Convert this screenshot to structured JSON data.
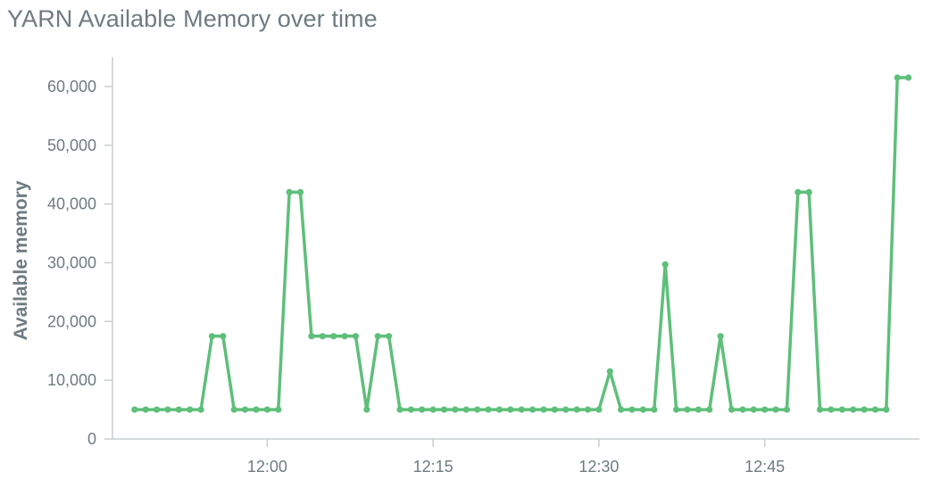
{
  "chart_data": {
    "type": "line",
    "title": "YARN Available Memory over time",
    "xlabel": "",
    "ylabel": "Available memory",
    "ylim": [
      0,
      65000
    ],
    "yticks": [
      0,
      10000,
      20000,
      30000,
      40000,
      50000,
      60000
    ],
    "ytick_labels": [
      "0",
      "10,000",
      "20,000",
      "30,000",
      "40,000",
      "50,000",
      "60,000"
    ],
    "xlim": [
      "11:46",
      "12:59"
    ],
    "xticks": [
      "12:00",
      "12:15",
      "12:30",
      "12:45"
    ],
    "grid": false,
    "legend": "none",
    "colors": {
      "line": "#5ebf7a",
      "text": "#6f7b80",
      "axis": "#c8cdd0"
    },
    "series": [
      {
        "x": [
          "11:48",
          "11:49",
          "11:50",
          "11:51",
          "11:52",
          "11:53",
          "11:54",
          "11:55",
          "11:56",
          "11:57",
          "11:58",
          "11:59",
          "12:00",
          "12:01",
          "12:02",
          "12:03",
          "12:04",
          "12:05",
          "12:06",
          "12:07",
          "12:08",
          "12:09",
          "12:10",
          "12:11",
          "12:12",
          "12:13",
          "12:14",
          "12:15",
          "12:16",
          "12:17",
          "12:18",
          "12:19",
          "12:20",
          "12:21",
          "12:22",
          "12:23",
          "12:24",
          "12:25",
          "12:26",
          "12:27",
          "12:28",
          "12:29",
          "12:30",
          "12:31",
          "12:32",
          "12:33",
          "12:34",
          "12:35",
          "12:36",
          "12:37",
          "12:38",
          "12:39",
          "12:40",
          "12:41",
          "12:42",
          "12:43",
          "12:44",
          "12:45",
          "12:46",
          "12:47",
          "12:48",
          "12:49",
          "12:50",
          "12:51",
          "12:52",
          "12:53",
          "12:54",
          "12:55",
          "12:56",
          "12:57",
          "12:58"
        ],
        "y": [
          5000,
          5000,
          5000,
          5000,
          5000,
          5000,
          5000,
          17500,
          17500,
          5000,
          5000,
          5000,
          5000,
          5000,
          42000,
          42000,
          17500,
          17500,
          17500,
          17500,
          17500,
          5000,
          17500,
          17500,
          5000,
          5000,
          5000,
          5000,
          5000,
          5000,
          5000,
          5000,
          5000,
          5000,
          5000,
          5000,
          5000,
          5000,
          5000,
          5000,
          5000,
          5000,
          5000,
          11500,
          5000,
          5000,
          5000,
          5000,
          29700,
          5000,
          5000,
          5000,
          5000,
          17500,
          5000,
          5000,
          5000,
          5000,
          5000,
          5000,
          42000,
          42000,
          5000,
          5000,
          5000,
          5000,
          5000,
          5000,
          5000,
          61500,
          61500
        ]
      }
    ]
  }
}
